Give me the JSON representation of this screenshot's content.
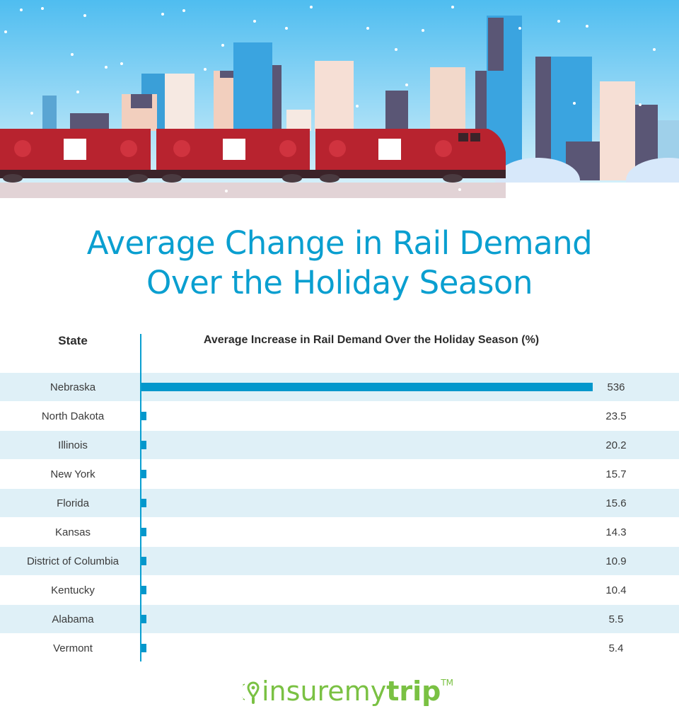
{
  "title": {
    "line1": "Average Change in Rail Demand",
    "line2": "Over the Holiday Season"
  },
  "headers": {
    "state": "State",
    "value": "Average Increase in Rail Demand Over the Holiday Season (%)"
  },
  "colors": {
    "accent": "#0a9fd0",
    "bar": "#0397cc",
    "band": "#dff0f7",
    "text": "#3a3a3a",
    "logo": "#7ac143",
    "train": "#b8232f",
    "sky_top": "#4fbdf0",
    "sky_bottom": "#cfeefa"
  },
  "chart_data": {
    "type": "bar",
    "orientation": "horizontal",
    "title": "Average Change in Rail Demand Over the Holiday Season",
    "xlabel": "Average Increase in Rail Demand Over the Holiday Season (%)",
    "ylabel": "State",
    "categories": [
      "Nebraska",
      "North Dakota",
      "Illinois",
      "New York",
      "Florida",
      "Kansas",
      "District of Columbia",
      "Kentucky",
      "Alabama",
      "Vermont"
    ],
    "values": [
      536,
      23.5,
      20.2,
      15.7,
      15.6,
      14.3,
      10.9,
      10.4,
      5.5,
      5.4
    ],
    "value_labels": [
      "536",
      "23.5",
      "20.2",
      "15.7",
      "15.6",
      "14.3",
      "10.9",
      "10.4",
      "5.5",
      "5.4"
    ],
    "xlim": [
      0,
      536
    ],
    "grid": false,
    "legend": "none"
  },
  "footer": {
    "logo_light": "insuremy",
    "logo_bold": "trip",
    "trademark": "TM"
  }
}
